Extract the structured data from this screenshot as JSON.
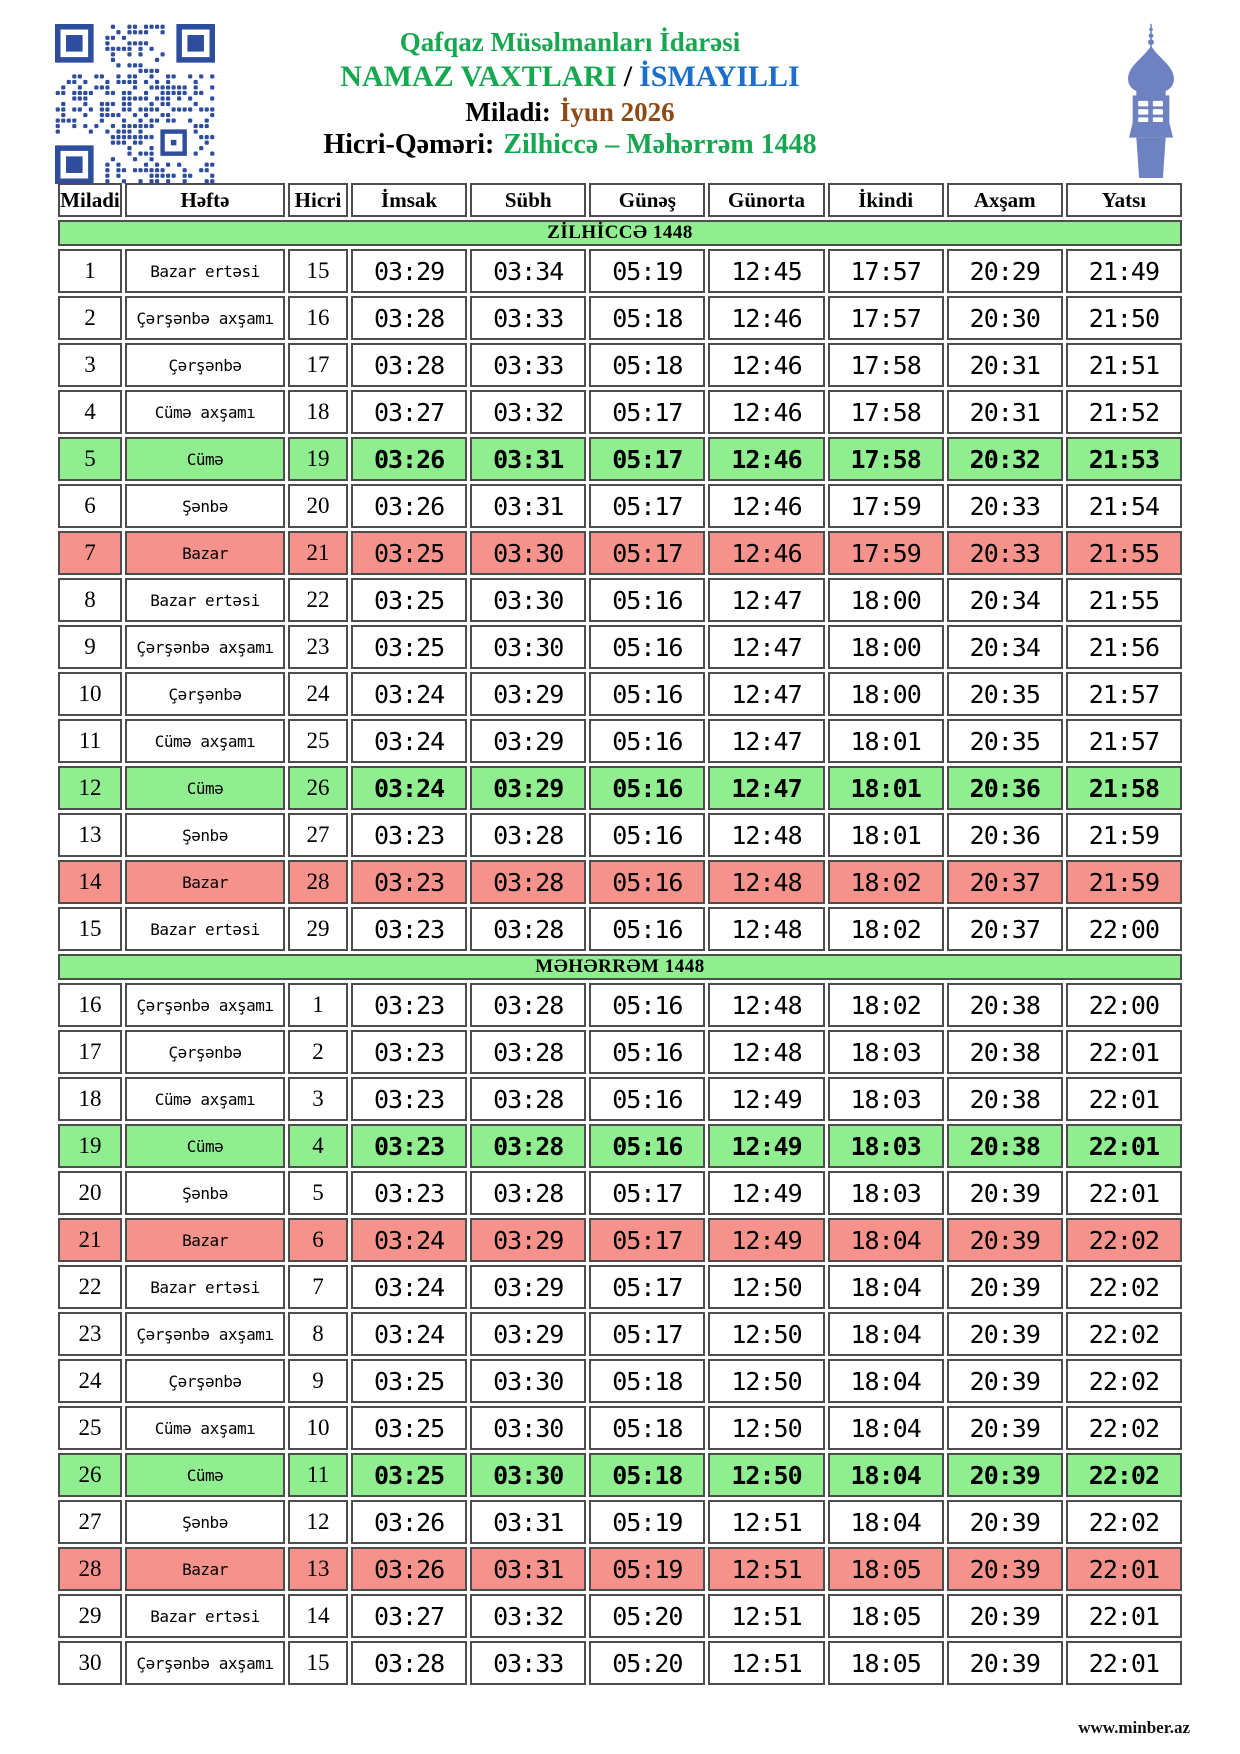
{
  "header": {
    "org": "Qafqaz Müsəlmanları İdarəsi",
    "title": "NAMAZ VAXTLARI",
    "title_separator": "/",
    "city": "İSMAYILLI",
    "miladi_label": "Miladi:",
    "miladi_value": "İyun 2026",
    "hicri_label": "Hicri-Qəməri:",
    "hicri_value": "Zilhiccə – Məhərrəm 1448"
  },
  "icons": {
    "qr": "qr-code-icon",
    "minaret": "minaret-icon"
  },
  "colors": {
    "green_text": "#17A750",
    "blue_text": "#1B6FCA",
    "brown_text": "#8F4A14",
    "friday_row": "#90EE90",
    "sunday_row": "#F5928B",
    "section_header": "#90EE90",
    "qr_blue": "#2E4D9D",
    "minaret_blue": "#6E82C2",
    "border": "#4D4D4D"
  },
  "table": {
    "columns": [
      "Miladi",
      "Həftə",
      "Hicri",
      "İmsak",
      "Sübh",
      "Günəş",
      "Günorta",
      "İkindi",
      "Axşam",
      "Yatsı"
    ],
    "sections": [
      {
        "title": "ZİLHİCCƏ 1448",
        "rows": [
          {
            "miladi": "1",
            "hefte": "Bazar ertəsi",
            "hicri": "15",
            "times": [
              "03:29",
              "03:34",
              "05:19",
              "12:45",
              "17:57",
              "20:29",
              "21:49"
            ],
            "highlight": "none"
          },
          {
            "miladi": "2",
            "hefte": "Çərşənbə axşamı",
            "hicri": "16",
            "times": [
              "03:28",
              "03:33",
              "05:18",
              "12:46",
              "17:57",
              "20:30",
              "21:50"
            ],
            "highlight": "none"
          },
          {
            "miladi": "3",
            "hefte": "Çərşənbə",
            "hicri": "17",
            "times": [
              "03:28",
              "03:33",
              "05:18",
              "12:46",
              "17:58",
              "20:31",
              "21:51"
            ],
            "highlight": "none"
          },
          {
            "miladi": "4",
            "hefte": "Cümə axşamı",
            "hicri": "18",
            "times": [
              "03:27",
              "03:32",
              "05:17",
              "12:46",
              "17:58",
              "20:31",
              "21:52"
            ],
            "highlight": "none"
          },
          {
            "miladi": "5",
            "hefte": "Cümə",
            "hicri": "19",
            "times": [
              "03:26",
              "03:31",
              "05:17",
              "12:46",
              "17:58",
              "20:32",
              "21:53"
            ],
            "highlight": "friday"
          },
          {
            "miladi": "6",
            "hefte": "Şənbə",
            "hicri": "20",
            "times": [
              "03:26",
              "03:31",
              "05:17",
              "12:46",
              "17:59",
              "20:33",
              "21:54"
            ],
            "highlight": "none"
          },
          {
            "miladi": "7",
            "hefte": "Bazar",
            "hicri": "21",
            "times": [
              "03:25",
              "03:30",
              "05:17",
              "12:46",
              "17:59",
              "20:33",
              "21:55"
            ],
            "highlight": "sunday"
          },
          {
            "miladi": "8",
            "hefte": "Bazar ertəsi",
            "hicri": "22",
            "times": [
              "03:25",
              "03:30",
              "05:16",
              "12:47",
              "18:00",
              "20:34",
              "21:55"
            ],
            "highlight": "none"
          },
          {
            "miladi": "9",
            "hefte": "Çərşənbə axşamı",
            "hicri": "23",
            "times": [
              "03:25",
              "03:30",
              "05:16",
              "12:47",
              "18:00",
              "20:34",
              "21:56"
            ],
            "highlight": "none"
          },
          {
            "miladi": "10",
            "hefte": "Çərşənbə",
            "hicri": "24",
            "times": [
              "03:24",
              "03:29",
              "05:16",
              "12:47",
              "18:00",
              "20:35",
              "21:57"
            ],
            "highlight": "none"
          },
          {
            "miladi": "11",
            "hefte": "Cümə axşamı",
            "hicri": "25",
            "times": [
              "03:24",
              "03:29",
              "05:16",
              "12:47",
              "18:01",
              "20:35",
              "21:57"
            ],
            "highlight": "none"
          },
          {
            "miladi": "12",
            "hefte": "Cümə",
            "hicri": "26",
            "times": [
              "03:24",
              "03:29",
              "05:16",
              "12:47",
              "18:01",
              "20:36",
              "21:58"
            ],
            "highlight": "friday"
          },
          {
            "miladi": "13",
            "hefte": "Şənbə",
            "hicri": "27",
            "times": [
              "03:23",
              "03:28",
              "05:16",
              "12:48",
              "18:01",
              "20:36",
              "21:59"
            ],
            "highlight": "none"
          },
          {
            "miladi": "14",
            "hefte": "Bazar",
            "hicri": "28",
            "times": [
              "03:23",
              "03:28",
              "05:16",
              "12:48",
              "18:02",
              "20:37",
              "21:59"
            ],
            "highlight": "sunday"
          },
          {
            "miladi": "15",
            "hefte": "Bazar ertəsi",
            "hicri": "29",
            "times": [
              "03:23",
              "03:28",
              "05:16",
              "12:48",
              "18:02",
              "20:37",
              "22:00"
            ],
            "highlight": "none"
          }
        ]
      },
      {
        "title": "MƏHƏRRƏM 1448",
        "rows": [
          {
            "miladi": "16",
            "hefte": "Çərşənbə axşamı",
            "hicri": "1",
            "times": [
              "03:23",
              "03:28",
              "05:16",
              "12:48",
              "18:02",
              "20:38",
              "22:00"
            ],
            "highlight": "none"
          },
          {
            "miladi": "17",
            "hefte": "Çərşənbə",
            "hicri": "2",
            "times": [
              "03:23",
              "03:28",
              "05:16",
              "12:48",
              "18:03",
              "20:38",
              "22:01"
            ],
            "highlight": "none"
          },
          {
            "miladi": "18",
            "hefte": "Cümə axşamı",
            "hicri": "3",
            "times": [
              "03:23",
              "03:28",
              "05:16",
              "12:49",
              "18:03",
              "20:38",
              "22:01"
            ],
            "highlight": "none"
          },
          {
            "miladi": "19",
            "hefte": "Cümə",
            "hicri": "4",
            "times": [
              "03:23",
              "03:28",
              "05:16",
              "12:49",
              "18:03",
              "20:38",
              "22:01"
            ],
            "highlight": "friday"
          },
          {
            "miladi": "20",
            "hefte": "Şənbə",
            "hicri": "5",
            "times": [
              "03:23",
              "03:28",
              "05:17",
              "12:49",
              "18:03",
              "20:39",
              "22:01"
            ],
            "highlight": "none"
          },
          {
            "miladi": "21",
            "hefte": "Bazar",
            "hicri": "6",
            "times": [
              "03:24",
              "03:29",
              "05:17",
              "12:49",
              "18:04",
              "20:39",
              "22:02"
            ],
            "highlight": "sunday"
          },
          {
            "miladi": "22",
            "hefte": "Bazar ertəsi",
            "hicri": "7",
            "times": [
              "03:24",
              "03:29",
              "05:17",
              "12:50",
              "18:04",
              "20:39",
              "22:02"
            ],
            "highlight": "none"
          },
          {
            "miladi": "23",
            "hefte": "Çərşənbə axşamı",
            "hicri": "8",
            "times": [
              "03:24",
              "03:29",
              "05:17",
              "12:50",
              "18:04",
              "20:39",
              "22:02"
            ],
            "highlight": "none"
          },
          {
            "miladi": "24",
            "hefte": "Çərşənbə",
            "hicri": "9",
            "times": [
              "03:25",
              "03:30",
              "05:18",
              "12:50",
              "18:04",
              "20:39",
              "22:02"
            ],
            "highlight": "none"
          },
          {
            "miladi": "25",
            "hefte": "Cümə axşamı",
            "hicri": "10",
            "times": [
              "03:25",
              "03:30",
              "05:18",
              "12:50",
              "18:04",
              "20:39",
              "22:02"
            ],
            "highlight": "none"
          },
          {
            "miladi": "26",
            "hefte": "Cümə",
            "hicri": "11",
            "times": [
              "03:25",
              "03:30",
              "05:18",
              "12:50",
              "18:04",
              "20:39",
              "22:02"
            ],
            "highlight": "friday"
          },
          {
            "miladi": "27",
            "hefte": "Şənbə",
            "hicri": "12",
            "times": [
              "03:26",
              "03:31",
              "05:19",
              "12:51",
              "18:04",
              "20:39",
              "22:02"
            ],
            "highlight": "none"
          },
          {
            "miladi": "28",
            "hefte": "Bazar",
            "hicri": "13",
            "times": [
              "03:26",
              "03:31",
              "05:19",
              "12:51",
              "18:05",
              "20:39",
              "22:01"
            ],
            "highlight": "sunday"
          },
          {
            "miladi": "29",
            "hefte": "Bazar ertəsi",
            "hicri": "14",
            "times": [
              "03:27",
              "03:32",
              "05:20",
              "12:51",
              "18:05",
              "20:39",
              "22:01"
            ],
            "highlight": "none"
          },
          {
            "miladi": "30",
            "hefte": "Çərşənbə axşamı",
            "hicri": "15",
            "times": [
              "03:28",
              "03:33",
              "05:20",
              "12:51",
              "18:05",
              "20:39",
              "22:01"
            ],
            "highlight": "none"
          }
        ]
      }
    ]
  },
  "footer": {
    "website": "www.minber.az"
  }
}
